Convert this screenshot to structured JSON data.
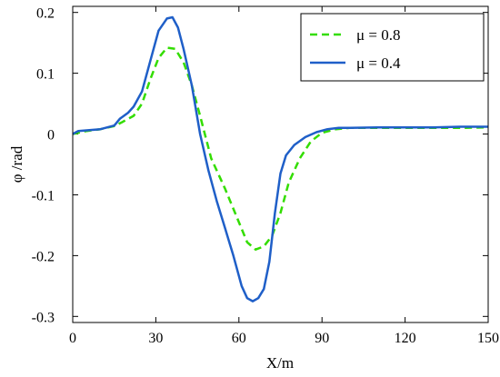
{
  "chart_data": {
    "type": "line",
    "xlabel": "X/m",
    "ylabel": "φ /rad",
    "xlim": [
      0,
      150
    ],
    "ylim": [
      -0.31,
      0.21
    ],
    "xticks": [
      0,
      30,
      60,
      90,
      120,
      150
    ],
    "xtick_labels": [
      "0",
      "30",
      "60",
      "90",
      "120",
      "150"
    ],
    "yticks": [
      0.2,
      0.1,
      0,
      -0.1,
      -0.2,
      -0.3
    ],
    "ytick_labels": [
      "0.2",
      "0.1",
      "0",
      "-0.1",
      "-0.2",
      "-0.3"
    ],
    "grid": false,
    "legend_position": "top-right",
    "series": [
      {
        "name": "μ = 0.8",
        "color": "#33dd00",
        "style": "dashed",
        "x": [
          0,
          5,
          10,
          15,
          18,
          22,
          25,
          28,
          31,
          34,
          37,
          40,
          43,
          46,
          50,
          55,
          60,
          63,
          66,
          69,
          72,
          75,
          78,
          82,
          86,
          90,
          95,
          100,
          110,
          120,
          130,
          140,
          150
        ],
        "y": [
          0.0,
          0.005,
          0.008,
          0.013,
          0.02,
          0.03,
          0.05,
          0.09,
          0.125,
          0.142,
          0.14,
          0.118,
          0.08,
          0.03,
          -0.04,
          -0.09,
          -0.145,
          -0.178,
          -0.19,
          -0.185,
          -0.167,
          -0.13,
          -0.08,
          -0.04,
          -0.012,
          0.002,
          0.008,
          0.01,
          0.01,
          0.01,
          0.01,
          0.01,
          0.011
        ]
      },
      {
        "name": "μ = 0.4",
        "color": "#1f5fc8",
        "style": "solid",
        "x": [
          0,
          2,
          5,
          10,
          15,
          17,
          20,
          22,
          25,
          28,
          31,
          34,
          36,
          38,
          40,
          43,
          46,
          49,
          52,
          55,
          58,
          61,
          63,
          65,
          67,
          69,
          71,
          73,
          75,
          77,
          80,
          84,
          88,
          92,
          96,
          100,
          110,
          120,
          130,
          140,
          150
        ],
        "y": [
          0.0,
          0.005,
          0.006,
          0.008,
          0.014,
          0.025,
          0.035,
          0.045,
          0.07,
          0.12,
          0.17,
          0.19,
          0.192,
          0.175,
          0.14,
          0.08,
          0.0,
          -0.06,
          -0.11,
          -0.155,
          -0.2,
          -0.25,
          -0.27,
          -0.275,
          -0.27,
          -0.255,
          -0.21,
          -0.13,
          -0.065,
          -0.035,
          -0.018,
          -0.005,
          0.003,
          0.008,
          0.01,
          0.01,
          0.011,
          0.011,
          0.011,
          0.012,
          0.012
        ]
      }
    ]
  }
}
